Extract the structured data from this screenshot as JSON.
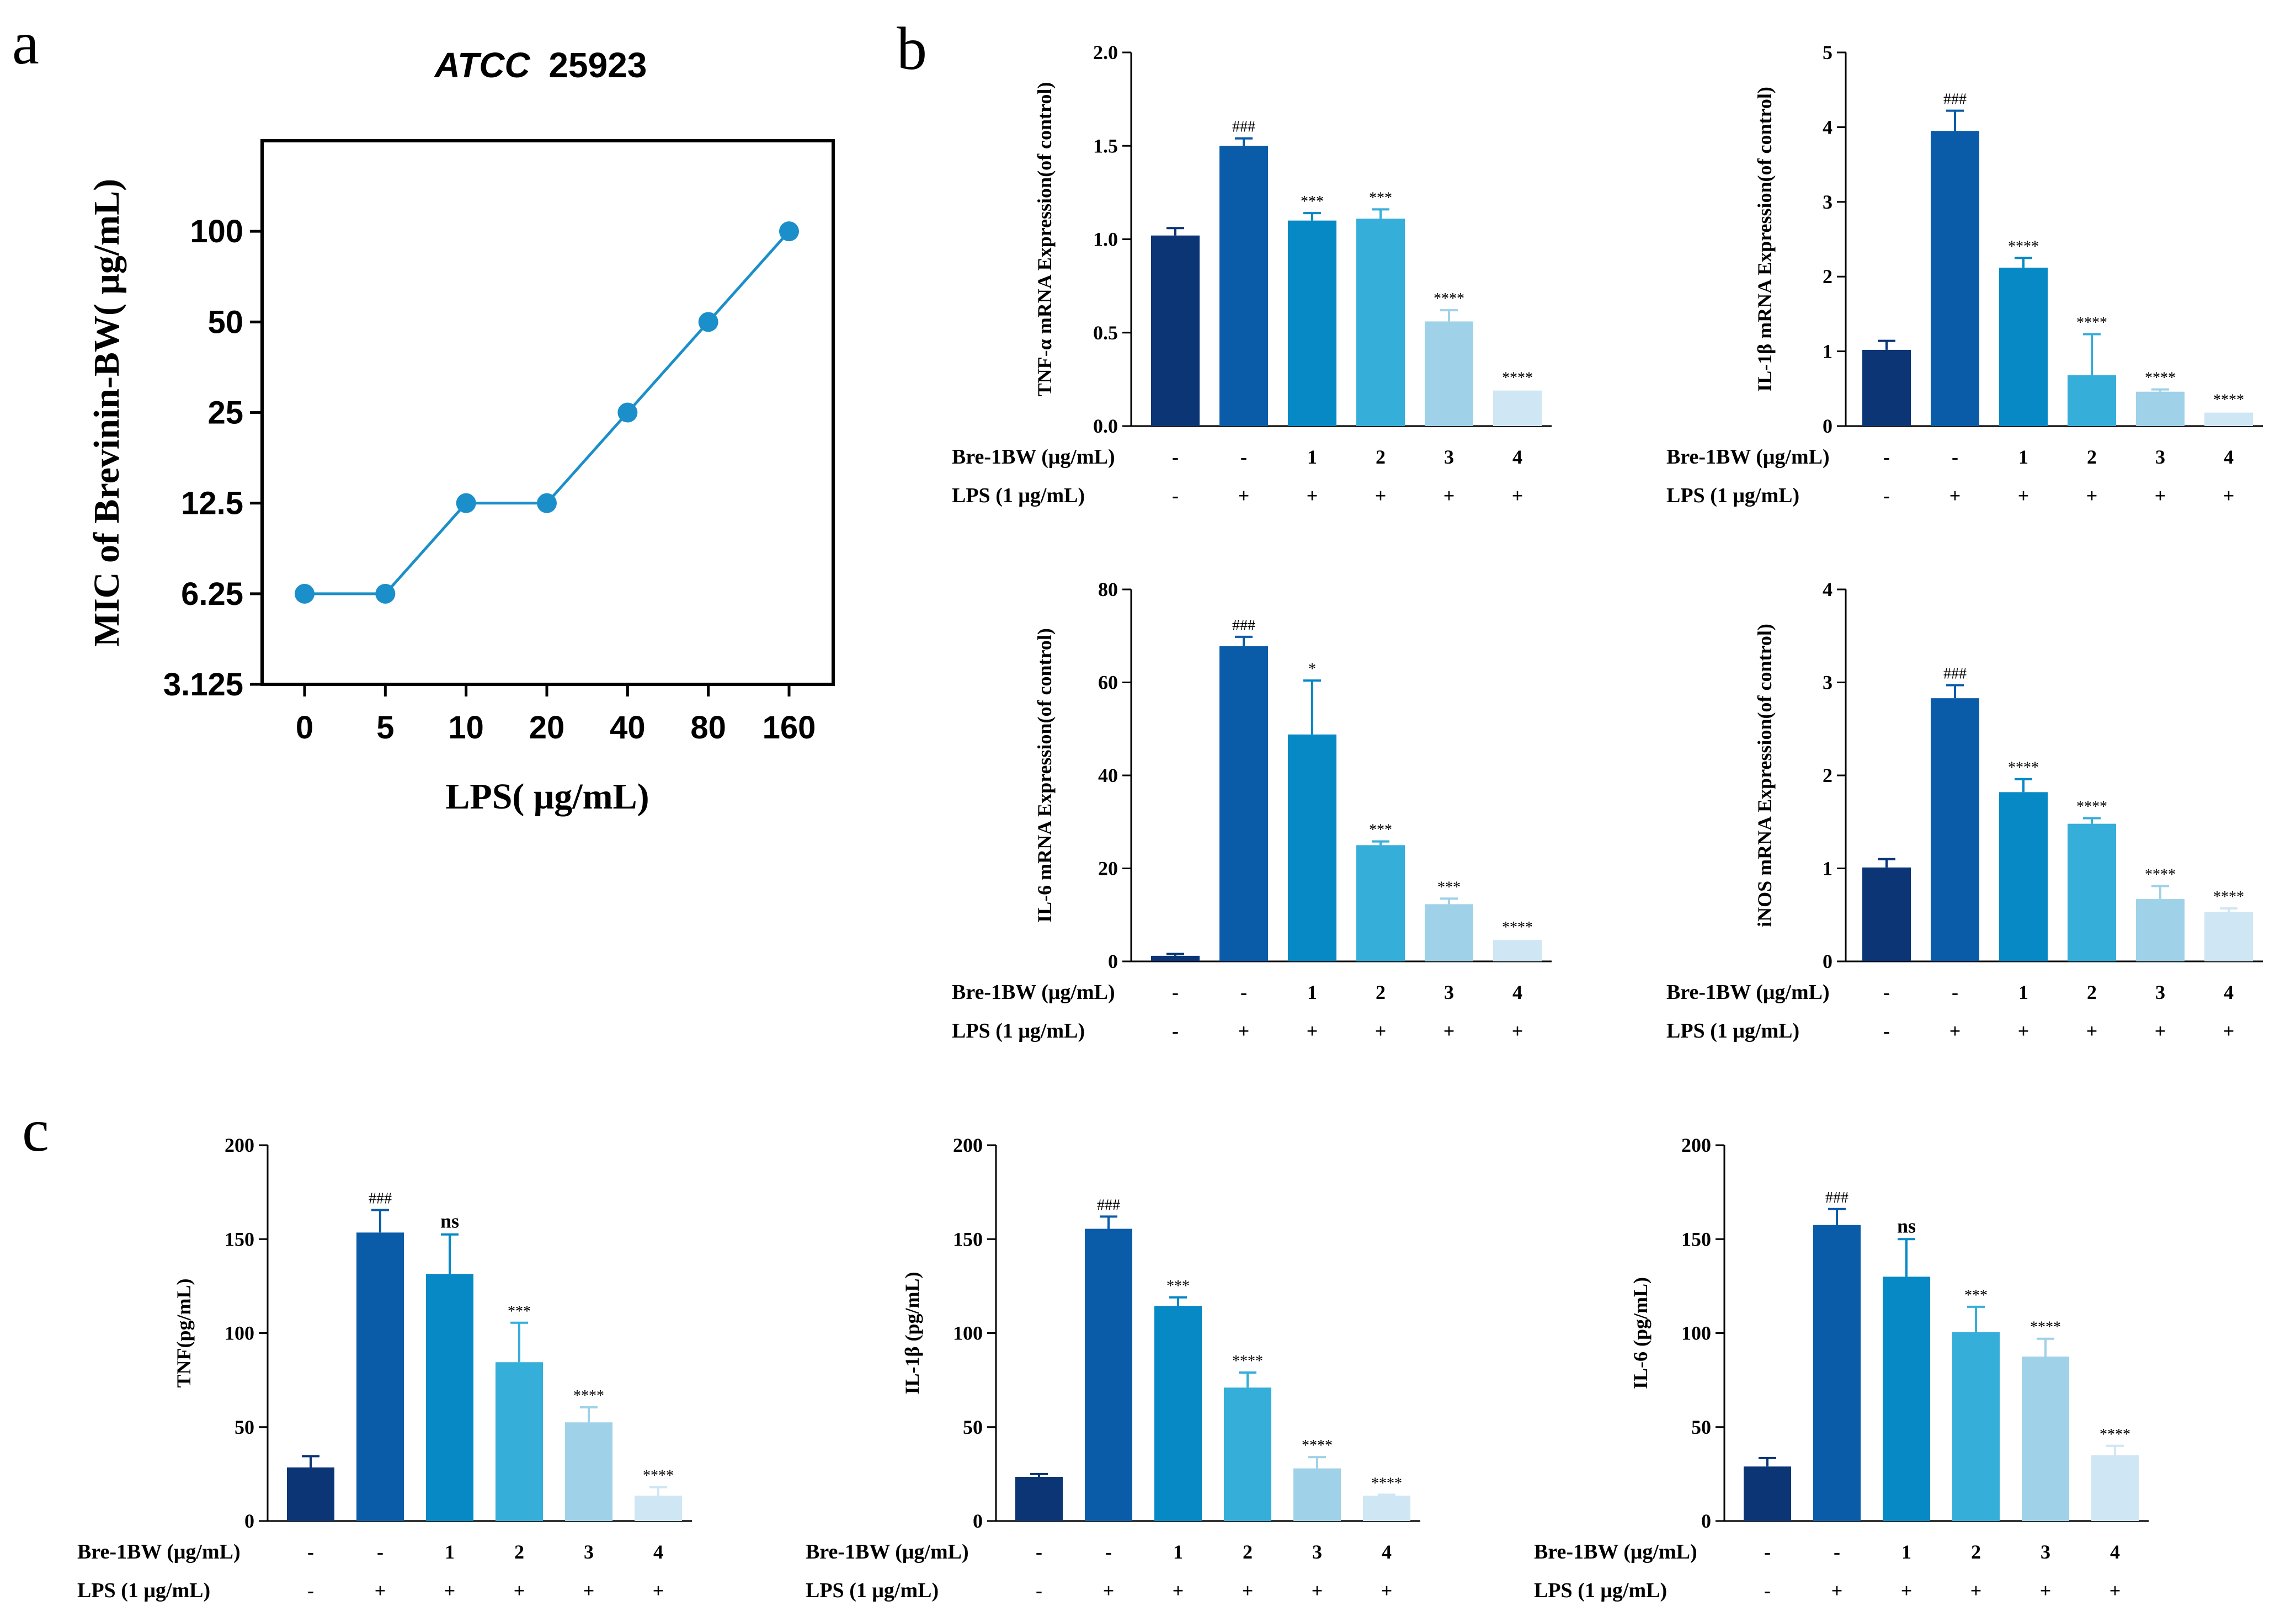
{
  "panels": {
    "a": "a",
    "b": "b",
    "c": "c"
  },
  "colors": {
    "series": [
      "#0b3575",
      "#0a5ca9",
      "#0689c5",
      "#35aed9",
      "#9fd1e8",
      "#cfe6f4"
    ],
    "line": "#1b8fc9",
    "axis": "#000000"
  },
  "treatment_rows": {
    "bre_label": "Bre-1BW (μg/mL)",
    "lps_label": "LPS (1 μg/mL)",
    "bre_values": [
      "-",
      "-",
      "1",
      "2",
      "3",
      "4"
    ],
    "lps_values": [
      "-",
      "+",
      "+",
      "+",
      "+",
      "+"
    ]
  },
  "chart_data": [
    {
      "id": "a",
      "type": "line",
      "title": "ATCC 25923",
      "title_italic": "ATCC",
      "title_rest": "25923",
      "xlabel": "LPS( μg/mL)",
      "ylabel": "MIC of Brevinin-BW( μg/mL)",
      "categories": [
        "0",
        "5",
        "10",
        "20",
        "40",
        "80",
        "160"
      ],
      "y_ticks": [
        "3.125",
        "6.25",
        "12.5",
        "25",
        "50",
        "100"
      ],
      "y_scale": "log2",
      "ylim": [
        3.125,
        200
      ],
      "values": [
        6.25,
        6.25,
        12.5,
        12.5,
        25,
        50,
        100
      ]
    },
    {
      "id": "b1",
      "type": "bar",
      "ylabel": "TNF-α mRNA Expression(of control)",
      "ylim": [
        0,
        2.0
      ],
      "y_ticks": [
        "0.0",
        "0.5",
        "1.0",
        "1.5",
        "2.0"
      ],
      "values": [
        1.02,
        1.5,
        1.1,
        1.11,
        0.56,
        0.19
      ],
      "errors": [
        0.04,
        0.04,
        0.04,
        0.05,
        0.06,
        0.0
      ],
      "sig": [
        "",
        "###",
        "***",
        "***",
        "****",
        "****"
      ]
    },
    {
      "id": "b2",
      "type": "bar",
      "ylabel": "IL-1β mRNA Expression(of control)",
      "ylim": [
        0,
        5
      ],
      "y_ticks": [
        "0",
        "1",
        "2",
        "3",
        "4",
        "5"
      ],
      "values": [
        1.02,
        3.95,
        2.12,
        0.68,
        0.46,
        0.18
      ],
      "errors": [
        0.12,
        0.27,
        0.13,
        0.55,
        0.03,
        0.0
      ],
      "sig": [
        "",
        "###",
        "****",
        "****",
        "****",
        "****"
      ]
    },
    {
      "id": "b3",
      "type": "bar",
      "ylabel": "IL-6 mRNA Expression(of control)",
      "ylim": [
        0,
        80
      ],
      "y_ticks": [
        "0",
        "20",
        "40",
        "60",
        "80"
      ],
      "values": [
        1.2,
        67.8,
        48.8,
        25.0,
        12.3,
        4.6
      ],
      "errors": [
        0.4,
        2.0,
        11.6,
        0.8,
        1.2,
        0.0
      ],
      "sig": [
        "",
        "###",
        "*",
        "***",
        "***",
        "****"
      ]
    },
    {
      "id": "b4",
      "type": "bar",
      "ylabel": "iNOS mRNA Expression(of control)",
      "ylim": [
        0,
        4
      ],
      "y_ticks": [
        "0",
        "1",
        "2",
        "3",
        "4"
      ],
      "values": [
        1.01,
        2.83,
        1.82,
        1.48,
        0.67,
        0.53
      ],
      "errors": [
        0.09,
        0.14,
        0.14,
        0.06,
        0.14,
        0.04
      ],
      "sig": [
        "",
        "###",
        "****",
        "****",
        "****",
        "****"
      ]
    },
    {
      "id": "c1",
      "type": "bar",
      "ylabel": "TNF(pg/mL)",
      "ylim": [
        0,
        200
      ],
      "y_ticks": [
        "0",
        "50",
        "100",
        "150",
        "200"
      ],
      "values": [
        28.5,
        153.5,
        131.5,
        84.5,
        52.5,
        13.5
      ],
      "errors": [
        6.0,
        12.0,
        21.0,
        21.0,
        8.0,
        4.5
      ],
      "sig": [
        "",
        "###",
        "ns",
        "***",
        "****",
        "****"
      ]
    },
    {
      "id": "c2",
      "type": "bar",
      "ylabel": "IL-1β (pg/mL)",
      "ylim": [
        0,
        200
      ],
      "y_ticks": [
        "0",
        "50",
        "100",
        "150",
        "200"
      ],
      "values": [
        23.5,
        155.5,
        114.5,
        71.0,
        28.0,
        13.5
      ],
      "errors": [
        1.5,
        6.5,
        4.5,
        8.0,
        6.0,
        0.5
      ],
      "sig": [
        "",
        "###",
        "***",
        "****",
        "****",
        "****"
      ]
    },
    {
      "id": "c3",
      "type": "bar",
      "ylabel": "IL-6 (pg/mL)",
      "ylim": [
        0,
        200
      ],
      "y_ticks": [
        "0",
        "50",
        "100",
        "150",
        "200"
      ],
      "values": [
        29.0,
        157.5,
        130.0,
        100.5,
        87.5,
        35.0
      ],
      "errors": [
        4.5,
        8.5,
        20.0,
        13.5,
        9.5,
        5.0
      ],
      "sig": [
        "",
        "###",
        "ns",
        "***",
        "****",
        "****"
      ]
    }
  ]
}
